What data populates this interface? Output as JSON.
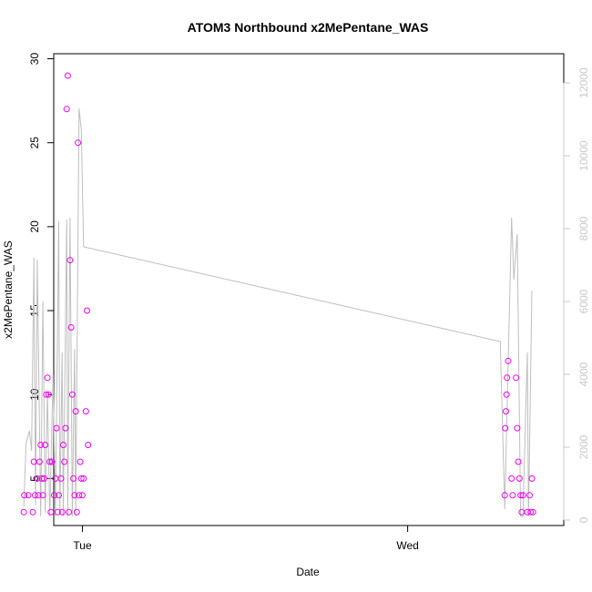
{
  "chart_data": {
    "type": "scatter",
    "title": "ATOM3 Northbound x2MePentane_WAS",
    "xlabel": "Date",
    "ylabel": "x2MePentane_WAS",
    "x_ticks": [
      "Tue",
      "Wed"
    ],
    "ylim": [
      2.2,
      30.3
    ],
    "y_ticks": [
      5,
      10,
      15,
      20,
      25,
      30
    ],
    "y2lim": [
      -150,
      12800
    ],
    "y2_ticks": [
      0,
      2000,
      4000,
      6000,
      8000,
      10000,
      12000
    ],
    "grid": false,
    "colors": {
      "points": "#ee00ee",
      "line": "#bebebe",
      "right_axis": "#c8c8c8"
    },
    "series": [
      {
        "type": "scatter",
        "points": [
          [
            "Mon 19:40",
            3
          ],
          [
            "Mon 19:42",
            4
          ],
          [
            "Mon 20:00",
            4
          ],
          [
            "Mon 20:20",
            3
          ],
          [
            "Mon 20:25",
            6
          ],
          [
            "Mon 20:30",
            4
          ],
          [
            "Mon 20:40",
            5
          ],
          [
            "Mon 20:45",
            4
          ],
          [
            "Mon 20:50",
            6
          ],
          [
            "Mon 20:55",
            7
          ],
          [
            "Mon 21:00",
            5
          ],
          [
            "Mon 21:05",
            4
          ],
          [
            "Mon 21:10",
            5
          ],
          [
            "Mon 21:15",
            7
          ],
          [
            "Mon 21:20",
            10
          ],
          [
            "Mon 21:25",
            11
          ],
          [
            "Mon 21:30",
            10
          ],
          [
            "Mon 21:35",
            6
          ],
          [
            "Mon 21:40",
            3
          ],
          [
            "Mon 21:45",
            6
          ],
          [
            "Mon 21:55",
            4
          ],
          [
            "Mon 22:00",
            5
          ],
          [
            "Mon 22:05",
            8
          ],
          [
            "Mon 22:10",
            3
          ],
          [
            "Mon 22:15",
            4
          ],
          [
            "Mon 22:25",
            5
          ],
          [
            "Mon 22:30",
            3
          ],
          [
            "Mon 22:35",
            7
          ],
          [
            "Mon 22:40",
            6
          ],
          [
            "Mon 22:45",
            8
          ],
          [
            "Mon 22:50",
            27
          ],
          [
            "Mon 22:55",
            29
          ],
          [
            "Mon 23:00",
            3
          ],
          [
            "Mon 23:05",
            18
          ],
          [
            "Mon 23:10",
            14
          ],
          [
            "Mon 23:15",
            10
          ],
          [
            "Mon 23:20",
            5
          ],
          [
            "Mon 23:25",
            4
          ],
          [
            "Mon 23:30",
            9
          ],
          [
            "Mon 23:35",
            3
          ],
          [
            "Mon 23:40",
            25
          ],
          [
            "Mon 23:45",
            4
          ],
          [
            "Mon 23:50",
            6
          ],
          [
            "Mon 23:55",
            5
          ],
          [
            "Tue 00:00",
            4
          ],
          [
            "Tue 00:05",
            5
          ],
          [
            "Tue 00:15",
            9
          ],
          [
            "Tue 00:20",
            15
          ],
          [
            "Tue 00:25",
            7
          ],
          [
            "Wed 07:10",
            4
          ],
          [
            "Wed 07:12",
            8
          ],
          [
            "Wed 07:15",
            9
          ],
          [
            "Wed 07:18",
            10
          ],
          [
            "Wed 07:20",
            11
          ],
          [
            "Wed 07:25",
            12
          ],
          [
            "Wed 07:40",
            5
          ],
          [
            "Wed 07:45",
            4
          ],
          [
            "Wed 08:00",
            11
          ],
          [
            "Wed 08:05",
            8
          ],
          [
            "Wed 08:10",
            6
          ],
          [
            "Wed 08:15",
            5
          ],
          [
            "Wed 08:20",
            4
          ],
          [
            "Wed 08:25",
            3
          ],
          [
            "Wed 08:30",
            4
          ],
          [
            "Wed 08:50",
            3
          ],
          [
            "Wed 09:00",
            4
          ],
          [
            "Wed 09:05",
            3
          ],
          [
            "Wed 09:10",
            5
          ],
          [
            "Wed 09:15",
            3
          ]
        ]
      },
      {
        "type": "line",
        "axis": "right",
        "points": [
          [
            "Mon 19:40",
            370
          ],
          [
            "Mon 19:50",
            2100
          ],
          [
            "Mon 20:05",
            2450
          ],
          [
            "Mon 20:15",
            1900
          ],
          [
            "Mon 20:25",
            7200
          ],
          [
            "Mon 20:32",
            400
          ],
          [
            "Mon 20:40",
            7150
          ],
          [
            "Mon 20:55",
            100
          ],
          [
            "Mon 21:05",
            6000
          ],
          [
            "Mon 21:15",
            200
          ],
          [
            "Mon 21:25",
            3500
          ],
          [
            "Mon 21:35",
            100
          ],
          [
            "Mon 21:50",
            4000
          ],
          [
            "Mon 22:00",
            100
          ],
          [
            "Mon 22:15",
            8200
          ],
          [
            "Mon 22:20",
            200
          ],
          [
            "Mon 22:30",
            4600
          ],
          [
            "Mon 22:35",
            100
          ],
          [
            "Mon 22:50",
            8250
          ],
          [
            "Mon 22:55",
            100
          ],
          [
            "Mon 23:05",
            8300
          ],
          [
            "Mon 23:15",
            100
          ],
          [
            "Mon 23:25",
            4700
          ],
          [
            "Mon 23:30",
            100
          ],
          [
            "Mon 23:45",
            11300
          ],
          [
            "Mon 23:55",
            10700
          ],
          [
            "Tue 00:05",
            7500
          ],
          [
            "Wed 06:50",
            4900
          ],
          [
            "Wed 07:10",
            300
          ],
          [
            "Wed 07:40",
            8300
          ],
          [
            "Wed 07:50",
            6600
          ],
          [
            "Wed 08:05",
            7850
          ],
          [
            "Wed 08:20",
            100
          ],
          [
            "Wed 08:30",
            100
          ],
          [
            "Wed 08:50",
            4600
          ],
          [
            "Wed 08:55",
            100
          ],
          [
            "Wed 09:10",
            6300
          ]
        ]
      }
    ]
  }
}
